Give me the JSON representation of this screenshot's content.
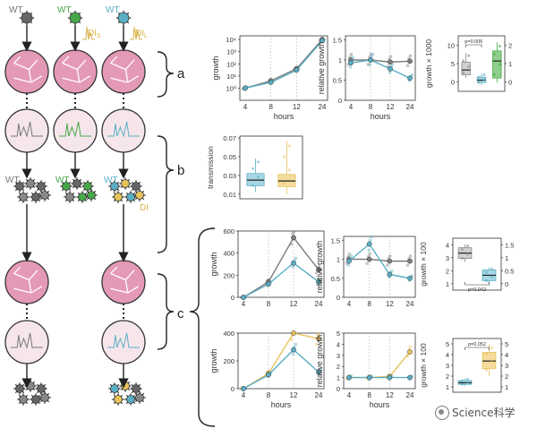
{
  "colors": {
    "wt": "#7d7d7d",
    "dil": "#5aaec4",
    "dis": "#e8c25a",
    "green": "#46a848",
    "pink": "#e49ab7",
    "greyText": "#666666"
  },
  "icons": [
    "virus-icon",
    "cell-icon",
    "arrow-icon",
    "brace-icon",
    "watermark-icon"
  ],
  "labels": {
    "wt": "WT",
    "dis": "DI",
    "dis_sub": "S",
    "dil": "DI",
    "dil_sub": "L",
    "group_a": "a",
    "group_b": "b",
    "group_c": "c",
    "watermark": "Science科学"
  },
  "chart_data": [
    {
      "id": "a-growth",
      "type": "line",
      "xlabel": "hours",
      "ylabel": "growth",
      "yscale": "log",
      "x": [
        4,
        8,
        12,
        24
      ],
      "xticks": [
        "4",
        "8",
        "12",
        "24"
      ],
      "ylim": [
        0.1,
        20000
      ],
      "yticks": [
        "10⁰",
        "10¹",
        "10²",
        "10³",
        "10⁴"
      ],
      "ytickvals": [
        1,
        10,
        100,
        1000,
        10000
      ],
      "series": [
        {
          "color": "#7d7d7d",
          "values": [
            1,
            4,
            40,
            10000
          ]
        },
        {
          "color": "#5aaec4",
          "values": [
            1,
            3,
            30,
            8000
          ]
        }
      ]
    },
    {
      "id": "a-relgrowth",
      "type": "line",
      "xlabel": "hours",
      "ylabel": "relative growth",
      "x": [
        4,
        8,
        12,
        24
      ],
      "xticks": [
        "4",
        "8",
        "12",
        "24"
      ],
      "ylim": [
        0,
        1.6
      ],
      "yticks": [
        "0",
        "0.5",
        "1",
        "1.5"
      ],
      "ytickvals": [
        0,
        0.5,
        1,
        1.5
      ],
      "series": [
        {
          "color": "#7d7d7d",
          "values": [
            1,
            1,
            0.95,
            0.97
          ]
        },
        {
          "color": "#5aaec4",
          "values": [
            0.93,
            1,
            0.78,
            0.55
          ]
        }
      ]
    },
    {
      "id": "a-box",
      "type": "box",
      "ylabel": "growth × 1000",
      "yticks_left": [
        "0",
        "5",
        "10"
      ],
      "yticks_right": [
        "0",
        "1",
        "2"
      ],
      "pvalue": "p=0.006",
      "boxes": [
        {
          "color": "#d0d0d0",
          "edge": "#888",
          "median": 6.2,
          "q1": 4.6,
          "q3": 8.8,
          "min": 3.6,
          "max": 11.8
        },
        {
          "color": "#a7d7e4",
          "edge": "#5aaec4",
          "median": 2.8,
          "q1": 2.0,
          "q3": 3.8,
          "min": 1.2,
          "max": 5.0
        },
        {
          "color": "#8fcf8c",
          "edge": "#46a848",
          "median": 9.2,
          "q1": 3.5,
          "q3": 12.6,
          "min": 2.0,
          "max": 15.5
        }
      ]
    },
    {
      "id": "b-transmission",
      "type": "box",
      "ylabel": "transmission",
      "yticks": [
        "0.01",
        "0.03",
        "0.05",
        "0.07"
      ],
      "ytickvals": [
        0.01,
        0.03,
        0.05,
        0.07
      ],
      "ylim": [
        0.005,
        0.072
      ],
      "boxes": [
        {
          "color": "#a7d7e4",
          "edge": "#5aaec4",
          "median": 0.025,
          "q1": 0.019,
          "q3": 0.032,
          "min": 0.012,
          "max": 0.048
        },
        {
          "color": "#f5dc9c",
          "edge": "#e8c25a",
          "median": 0.024,
          "q1": 0.018,
          "q3": 0.031,
          "min": 0.01,
          "max": 0.067
        }
      ]
    },
    {
      "id": "c1-growth",
      "type": "line",
      "xlabel": "",
      "ylabel": "growth",
      "x": [
        4,
        8,
        12,
        24
      ],
      "xticks": [
        "4",
        "8",
        "12",
        "24"
      ],
      "ylim": [
        0,
        600
      ],
      "yticks": [
        "0",
        "200",
        "400",
        "600"
      ],
      "ytickvals": [
        0,
        200,
        400,
        600
      ],
      "series": [
        {
          "color": "#7d7d7d",
          "values": [
            0,
            140,
            540,
            250
          ]
        },
        {
          "color": "#5aaec4",
          "values": [
            0,
            120,
            310,
            140
          ]
        }
      ]
    },
    {
      "id": "c1-relgrowth",
      "type": "line",
      "xlabel": "",
      "ylabel": "relative growth",
      "x": [
        4,
        8,
        12,
        24
      ],
      "xticks": [
        "4",
        "8",
        "12",
        "24"
      ],
      "ylim": [
        0,
        1.6
      ],
      "yticks": [
        "0",
        "0.5",
        "1",
        "1.5"
      ],
      "ytickvals": [
        0,
        0.5,
        1,
        1.5
      ],
      "series": [
        {
          "color": "#7d7d7d",
          "values": [
            1,
            1,
            0.95,
            0.95
          ]
        },
        {
          "color": "#5aaec4",
          "values": [
            0.95,
            1.4,
            0.6,
            0.5
          ]
        }
      ]
    },
    {
      "id": "c1-box",
      "type": "box",
      "ylabel": "growth × 100",
      "yticks_left": [
        "1",
        "2",
        "3",
        "4"
      ],
      "yticks_right": [
        "0",
        "0.5",
        "1",
        "1.5"
      ],
      "pvalue": "p=0.042",
      "boxes": [
        {
          "color": "#d0d0d0",
          "edge": "#888",
          "median": 2.7,
          "q1": 2.4,
          "q3": 3.0,
          "min": 2.2,
          "max": 3.2
        },
        {
          "color": "#a7d7e4",
          "edge": "#5aaec4",
          "median": 1.45,
          "q1": 1.15,
          "q3": 1.75,
          "min": 0.95,
          "max": 1.9
        }
      ]
    },
    {
      "id": "c2-growth",
      "type": "line",
      "xlabel": "hours",
      "ylabel": "growth",
      "x": [
        4,
        8,
        12,
        24
      ],
      "xticks": [
        "4",
        "8",
        "12",
        "24"
      ],
      "ylim": [
        0,
        400
      ],
      "yticks": [
        "0",
        "200",
        "400"
      ],
      "ytickvals": [
        0,
        200,
        400
      ],
      "series": [
        {
          "color": "#e8c25a",
          "values": [
            0,
            110,
            400,
            360
          ]
        },
        {
          "color": "#5aaec4",
          "values": [
            0,
            100,
            280,
            120
          ]
        }
      ]
    },
    {
      "id": "c2-relgrowth",
      "type": "line",
      "xlabel": "hours",
      "ylabel": "relative growth",
      "x": [
        4,
        8,
        12,
        24
      ],
      "xticks": [
        "4",
        "8",
        "12",
        "24"
      ],
      "ylim": [
        0,
        5
      ],
      "yticks": [
        "0",
        "1",
        "2",
        "3",
        "4",
        "5"
      ],
      "ytickvals": [
        0,
        1,
        2,
        3,
        4,
        5
      ],
      "series": [
        {
          "color": "#e8c25a",
          "values": [
            1,
            1,
            1.1,
            3.3
          ]
        },
        {
          "color": "#5aaec4",
          "values": [
            1,
            1,
            1,
            1
          ]
        }
      ]
    },
    {
      "id": "c2-box",
      "type": "box",
      "ylabel": "growth × 100",
      "yticks_left": [
        "1",
        "2",
        "3",
        "4",
        "5"
      ],
      "yticks_right": [
        "1",
        "2",
        "3",
        "4",
        "5"
      ],
      "pvalue": "p=0.052",
      "boxes": [
        {
          "color": "#a7d7e4",
          "edge": "#5aaec4",
          "median": 1.3,
          "q1": 1.15,
          "q3": 1.5,
          "min": 1.0,
          "max": 1.7
        },
        {
          "color": "#f5dc9c",
          "edge": "#e8c25a",
          "median": 3.3,
          "q1": 2.6,
          "q3": 4.1,
          "min": 1.9,
          "max": 4.8
        }
      ]
    }
  ]
}
